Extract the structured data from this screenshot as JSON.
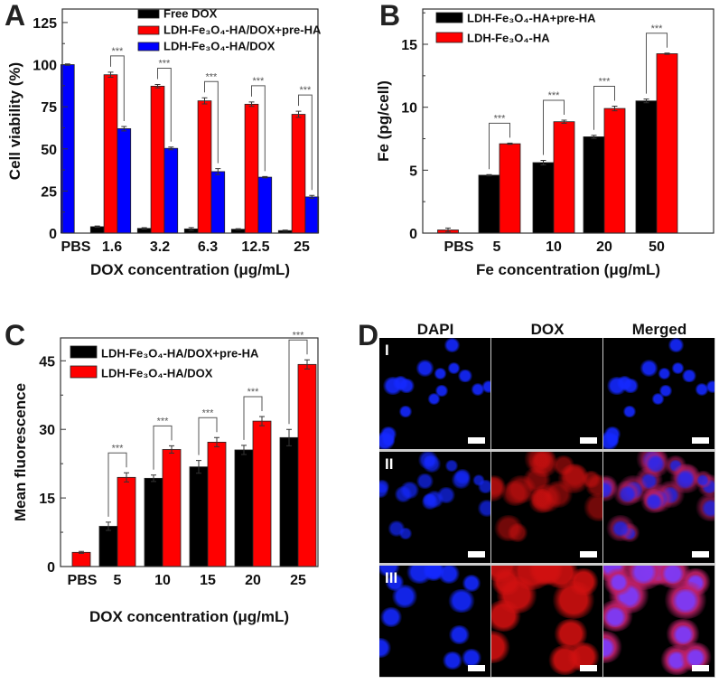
{
  "panel_labels": {
    "A": "A",
    "B": "B",
    "C": "C",
    "D": "D"
  },
  "chart_data": [
    {
      "id": "A",
      "type": "bar",
      "title": "",
      "xlabel": "DOX concentration (μg/mL)",
      "ylabel": "Cell viability (%)",
      "categories": [
        "PBS",
        "1.6",
        "3.2",
        "6.3",
        "12.5",
        "25"
      ],
      "ylim": [
        0,
        133
      ],
      "yticks": [
        0,
        25,
        50,
        75,
        100,
        125
      ],
      "legend_placement": "top-center",
      "series": [
        {
          "name": "Free DOX",
          "color": "#000000",
          "values": [
            null,
            3.8,
            2.8,
            2.5,
            2.3,
            1.5
          ],
          "errors": [
            null,
            0.4,
            0.4,
            0.8,
            0.3,
            0.3
          ]
        },
        {
          "name": "LDH-Fe₃O₄-HA/DOX+pre-HA",
          "color": "#ff0000",
          "values": [
            null,
            94,
            87.2,
            78.5,
            76.5,
            70.5
          ],
          "errors": [
            null,
            1.5,
            1,
            1.8,
            1.3,
            1.8
          ]
        },
        {
          "name": "LDH-Fe₃O₄-HA/DOX",
          "color": "#0000ff",
          "values": [
            100,
            62,
            50.3,
            36.5,
            33.2,
            21.5
          ],
          "errors": [
            0.4,
            1.3,
            0.8,
            1.8,
            0.4,
            0.9
          ]
        }
      ],
      "significance": {
        "label": "***",
        "between": [
          1,
          2
        ],
        "groups": [
          1,
          2,
          3,
          4,
          5
        ]
      }
    },
    {
      "id": "B",
      "type": "bar",
      "title": "",
      "xlabel": "Fe concentration (μg/mL)",
      "ylabel": "Fe (pg/cell)",
      "categories": [
        "PBS",
        "5",
        "10",
        "20",
        "50"
      ],
      "ylim": [
        0,
        17.8
      ],
      "yticks": [
        0,
        5,
        10,
        15
      ],
      "legend_placement": "top-left",
      "series": [
        {
          "name": "LDH-Fe₃O₄-HA+pre-HA",
          "color": "#000000",
          "values": [
            null,
            4.6,
            5.6,
            7.65,
            10.5
          ],
          "errors": [
            null,
            0.05,
            0.18,
            0.12,
            0.15
          ]
        },
        {
          "name": "LDH-Fe₃O₄-HA",
          "color": "#ff0000",
          "values": [
            0.25,
            7.1,
            8.85,
            9.9,
            14.25
          ],
          "errors": [
            0.15,
            0.05,
            0.12,
            0.18,
            0.05
          ]
        }
      ],
      "significance": {
        "label": "***",
        "between": [
          0,
          1
        ],
        "groups": [
          1,
          2,
          3,
          4
        ]
      }
    },
    {
      "id": "C",
      "type": "bar",
      "title": "",
      "xlabel": "DOX concentration (μg/mL)",
      "ylabel": "Mean fluorescence",
      "categories": [
        "PBS",
        "5",
        "10",
        "15",
        "20",
        "25"
      ],
      "ylim": [
        0,
        50
      ],
      "yticks": [
        0,
        15,
        30,
        45
      ],
      "legend_placement": "top-left",
      "series": [
        {
          "name": "LDH-Fe₃O₄-HA/DOX+pre-HA",
          "color": "#000000",
          "values": [
            null,
            8.8,
            19.3,
            21.8,
            25.5,
            28.2
          ],
          "errors": [
            null,
            0.9,
            0.7,
            1.4,
            1.0,
            1.8
          ]
        },
        {
          "name": "LDH-Fe₃O₄-HA/DOX",
          "color": "#ff0000",
          "values": [
            3.1,
            19.5,
            25.6,
            27.2,
            31.8,
            44.2
          ],
          "errors": [
            0.2,
            1.0,
            0.8,
            1.0,
            1.0,
            1.0
          ]
        }
      ],
      "significance": {
        "label": "***",
        "between": [
          0,
          1
        ],
        "groups": [
          1,
          2,
          3,
          4,
          5
        ]
      }
    }
  ],
  "microscopy": {
    "columns": [
      "DAPI",
      "DOX",
      "Merged"
    ],
    "rows": [
      "I",
      "II",
      "III"
    ]
  }
}
